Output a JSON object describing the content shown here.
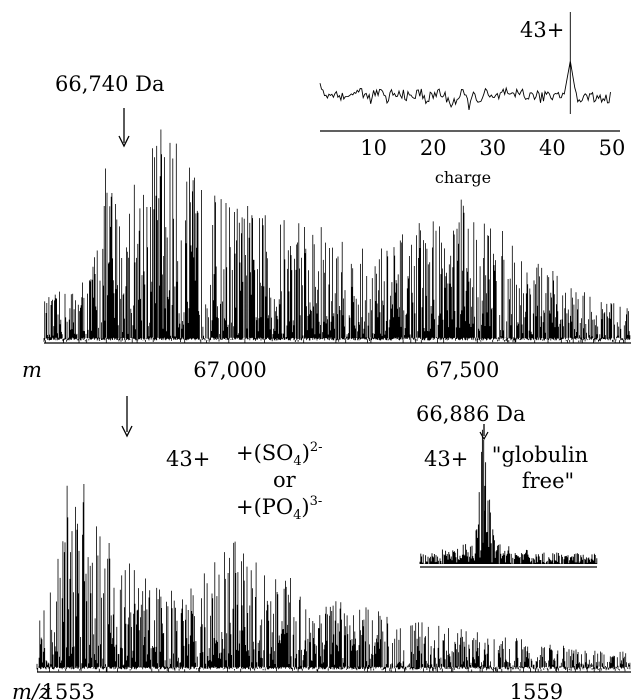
{
  "chart_data": [
    {
      "type": "line",
      "panel": "top",
      "title": "",
      "xlabel": "m",
      "ylabel": "",
      "xlim": [
        66600,
        67860
      ],
      "x_ticks": [
        {
          "value": 67000,
          "label": "67,000"
        },
        {
          "value": 67500,
          "label": "67,500"
        }
      ],
      "envelope": {
        "x": [
          66600,
          66650,
          66700,
          66740,
          66760,
          66800,
          66850,
          66900,
          66950,
          67000,
          67050,
          67100,
          67150,
          67200,
          67250,
          67300,
          67350,
          67400,
          67450,
          67500,
          67550,
          67600,
          67650,
          67700,
          67750,
          67800,
          67860
        ],
        "y": [
          0.18,
          0.22,
          0.3,
          0.8,
          0.55,
          0.7,
          0.95,
          0.75,
          0.62,
          0.6,
          0.55,
          0.5,
          0.55,
          0.48,
          0.4,
          0.38,
          0.42,
          0.48,
          0.55,
          0.6,
          0.52,
          0.42,
          0.35,
          0.28,
          0.22,
          0.18,
          0.15
        ]
      },
      "annotations": [
        {
          "text": "66,740 Da",
          "x": 66740
        }
      ],
      "inset": {
        "type": "line",
        "xlabel": "charge",
        "xlim": [
          1,
          50
        ],
        "x_ticks": [
          10,
          20,
          30,
          40,
          50
        ],
        "series": [
          {
            "x": [
              1,
              2,
              3,
              4,
              5,
              6,
              7,
              8,
              9,
              10,
              11,
              12,
              13,
              14,
              15,
              16,
              17,
              18,
              19,
              20,
              21,
              22,
              23,
              24,
              25,
              26,
              27,
              28,
              29,
              30,
              31,
              32,
              33,
              34,
              35,
              36,
              37,
              38,
              39,
              40,
              41,
              42,
              43,
              44,
              45,
              46,
              47,
              48,
              49,
              50
            ],
            "y": [
              0.55,
              0.4,
              0.35,
              0.45,
              0.3,
              0.42,
              0.38,
              0.48,
              0.3,
              0.36,
              0.45,
              0.28,
              0.4,
              0.35,
              0.44,
              0.3,
              0.38,
              0.42,
              0.3,
              0.36,
              0.45,
              0.33,
              0.25,
              0.3,
              0.4,
              0.22,
              0.38,
              0.3,
              0.42,
              0.28,
              0.36,
              0.44,
              0.3,
              0.38,
              0.46,
              0.32,
              0.4,
              0.3,
              0.42,
              0.36,
              0.45,
              0.4,
              1.0,
              0.35,
              0.3,
              0.38,
              0.32,
              0.36,
              0.3,
              0.34
            ]
          }
        ],
        "annotations": [
          {
            "text": "43+",
            "x": 43
          }
        ]
      }
    },
    {
      "type": "line",
      "panel": "bottom",
      "title": "",
      "xlabel": "m/z",
      "ylabel": "",
      "xlim": [
        1552.6,
        1560.2
      ],
      "x_ticks": [
        {
          "value": 1553,
          "label": "1553"
        },
        {
          "value": 1559,
          "label": "1559"
        }
      ],
      "envelope": {
        "x": [
          1552.6,
          1552.8,
          1553.0,
          1553.2,
          1553.4,
          1553.6,
          1553.8,
          1554.0,
          1554.2,
          1554.5,
          1554.8,
          1555.0,
          1555.3,
          1555.6,
          1556.0,
          1556.5,
          1557.0,
          1557.5,
          1558.0,
          1558.5,
          1559.0,
          1559.5,
          1560.2
        ],
        "y": [
          0.2,
          0.35,
          0.82,
          0.95,
          0.7,
          0.5,
          0.45,
          0.42,
          0.35,
          0.3,
          0.45,
          0.55,
          0.5,
          0.42,
          0.35,
          0.28,
          0.25,
          0.2,
          0.18,
          0.15,
          0.12,
          0.1,
          0.08
        ]
      },
      "annotations": [
        {
          "text": "43+",
          "x": 1553.3
        },
        {
          "text": "+(SO",
          "sub": "4",
          "sup": "2-"
        },
        {
          "text": "or"
        },
        {
          "text": "+(PO",
          "sub": "4",
          "sup": "3-"
        }
      ],
      "inset": {
        "type": "line",
        "title": "66,886 Da",
        "peak_label": "43+",
        "note": [
          "\"globulin",
          "free\""
        ],
        "peak_position": 0.36
      }
    }
  ]
}
